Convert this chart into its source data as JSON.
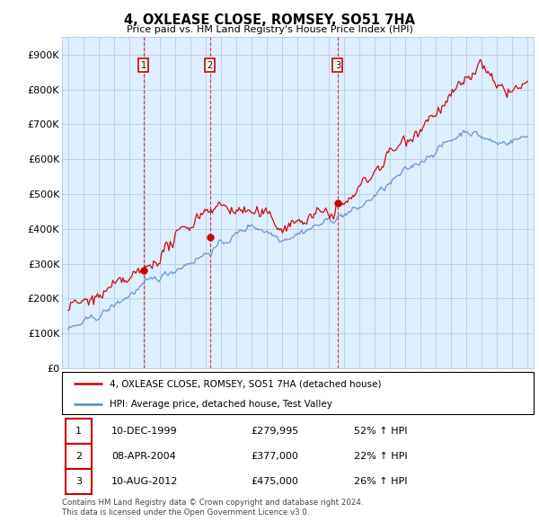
{
  "title": "4, OXLEASE CLOSE, ROMSEY, SO51 7HA",
  "subtitle": "Price paid vs. HM Land Registry's House Price Index (HPI)",
  "red_line_label": "4, OXLEASE CLOSE, ROMSEY, SO51 7HA (detached house)",
  "blue_line_label": "HPI: Average price, detached house, Test Valley",
  "footer_line1": "Contains HM Land Registry data © Crown copyright and database right 2024.",
  "footer_line2": "This data is licensed under the Open Government Licence v3.0.",
  "transactions": [
    {
      "num": 1,
      "date": "10-DEC-1999",
      "price": "£279,995",
      "change": "52% ↑ HPI",
      "year": 1999.92
    },
    {
      "num": 2,
      "date": "08-APR-2004",
      "price": "£377,000",
      "change": "22% ↑ HPI",
      "year": 2004.27
    },
    {
      "num": 3,
      "date": "10-AUG-2012",
      "price": "£475,000",
      "change": "26% ↑ HPI",
      "year": 2012.61
    }
  ],
  "transaction_prices": [
    279995,
    377000,
    475000
  ],
  "ylim": [
    0,
    950000
  ],
  "yticks": [
    0,
    100000,
    200000,
    300000,
    400000,
    500000,
    600000,
    700000,
    800000,
    900000
  ],
  "ytick_labels": [
    "£0",
    "£100K",
    "£200K",
    "£300K",
    "£400K",
    "£500K",
    "£600K",
    "£700K",
    "£800K",
    "£900K"
  ],
  "red_color": "#cc0000",
  "blue_color": "#5588cc",
  "chart_bg": "#ddeeff",
  "background_color": "#ffffff",
  "grid_color": "#bbccdd"
}
